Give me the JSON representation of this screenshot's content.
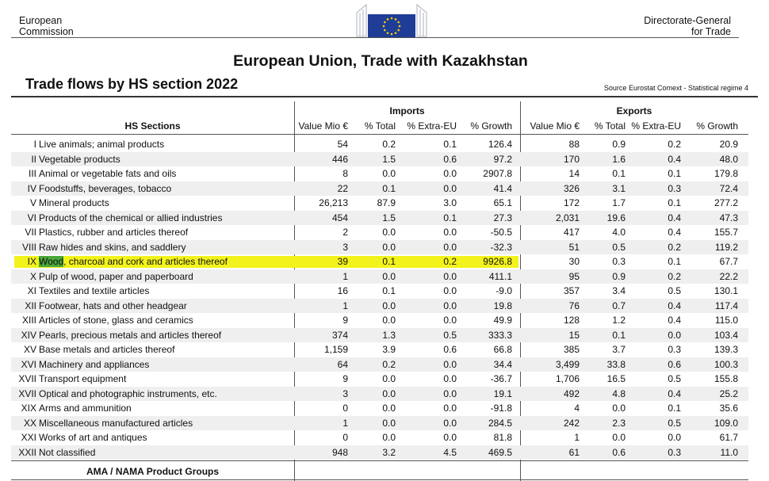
{
  "header": {
    "org_left_line1": "European",
    "org_left_line2": "Commission",
    "org_right_line1": "Directorate-General",
    "org_right_line2": "for Trade",
    "flag_icon": "eu-flag-icon",
    "flag_color": "#1f3c96",
    "star_color": "#f5d200"
  },
  "title": "European Union, Trade with Kazakhstan",
  "subtitle": "Trade flows by HS section 2022",
  "source": "Source Eurostat Comext - Statistical regime 4",
  "table": {
    "groups": {
      "imports": "Imports",
      "exports": "Exports"
    },
    "columns": {
      "sections": "HS Sections",
      "imp_value": "Value Mio €",
      "imp_total": "% Total",
      "imp_extra": "% Extra-EU",
      "imp_growth": "% Growth",
      "exp_value": "Value Mio €",
      "exp_total": "% Total",
      "exp_extra": "% Extra-EU",
      "exp_growth": "% Growth"
    },
    "rows": [
      {
        "num": "I",
        "pre": "",
        "hl": "",
        "label": "Live animals;  animal products",
        "iv": "54",
        "it": "0.2",
        "ie": "0.1",
        "ig": "126.4",
        "ev": "88",
        "et": "0.9",
        "ee": "0.2",
        "eg": "20.9"
      },
      {
        "num": "II",
        "pre": "",
        "hl": "",
        "label": "Vegetable products",
        "iv": "446",
        "it": "1.5",
        "ie": "0.6",
        "ig": "97.2",
        "ev": "170",
        "et": "1.6",
        "ee": "0.4",
        "eg": "48.0"
      },
      {
        "num": "III",
        "pre": "",
        "hl": "",
        "label": "Animal or vegetable fats and oils",
        "iv": "8",
        "it": "0.0",
        "ie": "0.0",
        "ig": "2907.8",
        "ev": "14",
        "et": "0.1",
        "ee": "0.1",
        "eg": "179.8"
      },
      {
        "num": "IV",
        "pre": "",
        "hl": "",
        "label": "Foodstuffs, beverages, tobacco",
        "iv": "22",
        "it": "0.1",
        "ie": "0.0",
        "ig": "41.4",
        "ev": "326",
        "et": "3.1",
        "ee": "0.3",
        "eg": "72.4"
      },
      {
        "num": "V",
        "pre": "",
        "hl": "",
        "label": "Mineral products",
        "iv": "26,213",
        "it": "87.9",
        "ie": "3.0",
        "ig": "65.1",
        "ev": "172",
        "et": "1.7",
        "ee": "0.1",
        "eg": "277.2"
      },
      {
        "num": "VI",
        "pre": "",
        "hl": "",
        "label": "Products of the chemical or allied industries",
        "iv": "454",
        "it": "1.5",
        "ie": "0.1",
        "ig": "27.3",
        "ev": "2,031",
        "et": "19.6",
        "ee": "0.4",
        "eg": "47.3"
      },
      {
        "num": "VII",
        "pre": "",
        "hl": "",
        "label": "Plastics, rubber and articles thereof",
        "iv": "2",
        "it": "0.0",
        "ie": "0.0",
        "ig": "-50.5",
        "ev": "417",
        "et": "4.0",
        "ee": "0.4",
        "eg": "155.7"
      },
      {
        "num": "VIII",
        "pre": "",
        "hl": "",
        "label": "Raw hides and skins, and saddlery",
        "iv": "3",
        "it": "0.0",
        "ie": "0.0",
        "ig": "-32.3",
        "ev": "51",
        "et": "0.5",
        "ee": "0.2",
        "eg": "119.2"
      },
      {
        "num": "IX",
        "pre": "",
        "hl": "Wood",
        "label": ", charcoal and cork and articles thereof",
        "iv": "39",
        "it": "0.1",
        "ie": "0.2",
        "ig": "9926.8",
        "ev": "30",
        "et": "0.3",
        "ee": "0.1",
        "eg": "67.7"
      },
      {
        "num": "X",
        "pre": "",
        "hl": "",
        "label": "Pulp of wood, paper and paperboard",
        "iv": "1",
        "it": "0.0",
        "ie": "0.0",
        "ig": "411.1",
        "ev": "95",
        "et": "0.9",
        "ee": "0.2",
        "eg": "22.2"
      },
      {
        "num": "XI",
        "pre": "",
        "hl": "",
        "label": "Textiles and textile articles",
        "iv": "16",
        "it": "0.1",
        "ie": "0.0",
        "ig": "-9.0",
        "ev": "357",
        "et": "3.4",
        "ee": "0.5",
        "eg": "130.1"
      },
      {
        "num": "XII",
        "pre": "",
        "hl": "",
        "label": "Footwear, hats and other headgear",
        "iv": "1",
        "it": "0.0",
        "ie": "0.0",
        "ig": "19.8",
        "ev": "76",
        "et": "0.7",
        "ee": "0.4",
        "eg": "117.4"
      },
      {
        "num": "XIII",
        "pre": "",
        "hl": "",
        "label": "Articles of stone, glass and ceramics",
        "iv": "9",
        "it": "0.0",
        "ie": "0.0",
        "ig": "49.9",
        "ev": "128",
        "et": "1.2",
        "ee": "0.4",
        "eg": "115.0"
      },
      {
        "num": "XIV",
        "pre": "",
        "hl": "",
        "label": "Pearls, precious metals and articles thereof",
        "iv": "374",
        "it": "1.3",
        "ie": "0.5",
        "ig": "333.3",
        "ev": "15",
        "et": "0.1",
        "ee": "0.0",
        "eg": "103.4"
      },
      {
        "num": "XV",
        "pre": "",
        "hl": "",
        "label": "Base metals and articles thereof",
        "iv": "1,159",
        "it": "3.9",
        "ie": "0.6",
        "ig": "66.8",
        "ev": "385",
        "et": "3.7",
        "ee": "0.3",
        "eg": "139.3"
      },
      {
        "num": "XVI",
        "pre": "",
        "hl": "",
        "label": "Machinery and appliances",
        "iv": "64",
        "it": "0.2",
        "ie": "0.0",
        "ig": "34.4",
        "ev": "3,499",
        "et": "33.8",
        "ee": "0.6",
        "eg": "100.3"
      },
      {
        "num": "XVII",
        "pre": "",
        "hl": "",
        "label": "Transport equipment",
        "iv": "9",
        "it": "0.0",
        "ie": "0.0",
        "ig": "-36.7",
        "ev": "1,706",
        "et": "16.5",
        "ee": "0.5",
        "eg": "155.8"
      },
      {
        "num": "XVII",
        "pre": "",
        "hl": "",
        "label": "Optical and photographic instruments, etc.",
        "iv": "3",
        "it": "0.0",
        "ie": "0.0",
        "ig": "19.1",
        "ev": "492",
        "et": "4.8",
        "ee": "0.4",
        "eg": "25.2"
      },
      {
        "num": "XIX",
        "pre": "",
        "hl": "",
        "label": "Arms and ammunition",
        "iv": "0",
        "it": "0.0",
        "ie": "0.0",
        "ig": "-91.8",
        "ev": "4",
        "et": "0.0",
        "ee": "0.1",
        "eg": "35.6"
      },
      {
        "num": "XX",
        "pre": "",
        "hl": "",
        "label": "Miscellaneous manufactured articles",
        "iv": "1",
        "it": "0.0",
        "ie": "0.0",
        "ig": "284.5",
        "ev": "242",
        "et": "2.3",
        "ee": "0.5",
        "eg": "109.0"
      },
      {
        "num": "XXI",
        "pre": "",
        "hl": "",
        "label": "Works of art and antiques",
        "iv": "0",
        "it": "0.0",
        "ie": "0.0",
        "ig": "81.8",
        "ev": "1",
        "et": "0.0",
        "ee": "0.0",
        "eg": "61.7"
      },
      {
        "num": "XXII",
        "pre": "",
        "hl": "",
        "label": "Not classified",
        "iv": "948",
        "it": "3.2",
        "ie": "4.5",
        "ig": "469.5",
        "ev": "61",
        "et": "0.6",
        "ee": "0.3",
        "eg": "11.0"
      }
    ],
    "footer_label": "AMA / NAMA Product Groups",
    "highlight_row_index": 8,
    "highlight_color": "#f3f31c",
    "highlight_word_color": "#4aa83a"
  }
}
